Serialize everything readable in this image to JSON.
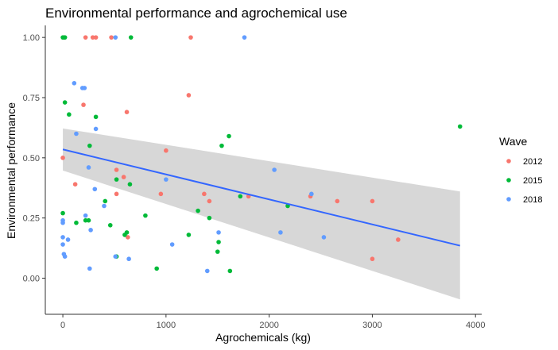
{
  "chart_data": {
    "type": "scatter",
    "title": "Environmental performance and agrochemical use",
    "xlabel": "Agrochemicals (kg)",
    "ylabel": "Environmental performance",
    "xlim": [
      -170,
      4060
    ],
    "ylim": [
      -0.15,
      1.05
    ],
    "x_ticks": [
      0,
      1000,
      2000,
      3000,
      4000
    ],
    "x_tick_labels": [
      "0",
      "1000",
      "2000",
      "3000",
      "4000"
    ],
    "y_ticks": [
      0,
      0.25,
      0.5,
      0.75,
      1
    ],
    "y_tick_labels": [
      "0.00",
      "0.25",
      "0.50",
      "0.75",
      "1.00"
    ],
    "grid": false,
    "legend": {
      "title": "Wave",
      "position": "right"
    },
    "colors": {
      "2012": "#F8766D",
      "2015": "#00BA38",
      "2018": "#619CFF",
      "smooth": "#3366FF",
      "ribbon": "#D3D3D3",
      "axis": "#333333"
    },
    "series": [
      {
        "name": "2012",
        "points": [
          [
            0,
            0.5
          ],
          [
            10,
            1.0
          ],
          [
            120,
            0.39
          ],
          [
            200,
            0.72
          ],
          [
            220,
            1.0
          ],
          [
            290,
            1.0
          ],
          [
            320,
            1.0
          ],
          [
            470,
            1.0
          ],
          [
            520,
            0.35
          ],
          [
            520,
            0.45
          ],
          [
            590,
            0.42
          ],
          [
            620,
            0.69
          ],
          [
            630,
            0.17
          ],
          [
            950,
            0.35
          ],
          [
            1000,
            0.53
          ],
          [
            1220,
            0.76
          ],
          [
            1240,
            1.0
          ],
          [
            1370,
            0.35
          ],
          [
            1420,
            0.32
          ],
          [
            1800,
            0.34
          ],
          [
            2400,
            0.34
          ],
          [
            2660,
            0.32
          ],
          [
            3000,
            0.32
          ],
          [
            3000,
            0.08
          ],
          [
            3250,
            0.16
          ]
        ]
      },
      {
        "name": "2015",
        "points": [
          [
            0,
            1.0
          ],
          [
            20,
            1.0
          ],
          [
            20,
            0.73
          ],
          [
            0,
            0.27
          ],
          [
            60,
            0.68
          ],
          [
            130,
            0.23
          ],
          [
            220,
            0.24
          ],
          [
            250,
            0.24
          ],
          [
            260,
            0.55
          ],
          [
            320,
            0.67
          ],
          [
            410,
            0.32
          ],
          [
            460,
            0.22
          ],
          [
            520,
            0.09
          ],
          [
            520,
            0.41
          ],
          [
            600,
            0.18
          ],
          [
            620,
            0.19
          ],
          [
            650,
            0.39
          ],
          [
            660,
            1.0
          ],
          [
            800,
            0.26
          ],
          [
            910,
            0.04
          ],
          [
            1220,
            0.18
          ],
          [
            1310,
            0.28
          ],
          [
            1420,
            0.25
          ],
          [
            1500,
            0.11
          ],
          [
            1510,
            0.15
          ],
          [
            1540,
            0.55
          ],
          [
            1610,
            0.59
          ],
          [
            1620,
            0.03
          ],
          [
            1720,
            0.34
          ],
          [
            2180,
            0.3
          ],
          [
            3850,
            0.63
          ]
        ]
      },
      {
        "name": "2018",
        "points": [
          [
            0,
            0.24
          ],
          [
            0,
            0.23
          ],
          [
            0,
            0.17
          ],
          [
            0,
            0.14
          ],
          [
            10,
            0.1
          ],
          [
            20,
            0.09
          ],
          [
            50,
            0.16
          ],
          [
            110,
            0.81
          ],
          [
            130,
            0.6
          ],
          [
            190,
            0.79
          ],
          [
            210,
            0.79
          ],
          [
            220,
            0.26
          ],
          [
            250,
            0.46
          ],
          [
            260,
            0.04
          ],
          [
            270,
            0.2
          ],
          [
            310,
            0.37
          ],
          [
            320,
            0.62
          ],
          [
            400,
            0.3
          ],
          [
            510,
            0.09
          ],
          [
            510,
            1.0
          ],
          [
            640,
            0.08
          ],
          [
            1000,
            0.41
          ],
          [
            1060,
            0.14
          ],
          [
            1400,
            0.03
          ],
          [
            1510,
            0.19
          ],
          [
            1760,
            1.0
          ],
          [
            2050,
            0.45
          ],
          [
            2110,
            0.19
          ],
          [
            2410,
            0.35
          ],
          [
            2530,
            0.17
          ]
        ]
      }
    ],
    "smooth": {
      "method": "lm",
      "x": [
        0,
        3850
      ],
      "fit": [
        0.535,
        0.135
      ],
      "lower": [
        0.447,
        -0.088
      ],
      "upper": [
        0.622,
        0.36
      ]
    }
  }
}
